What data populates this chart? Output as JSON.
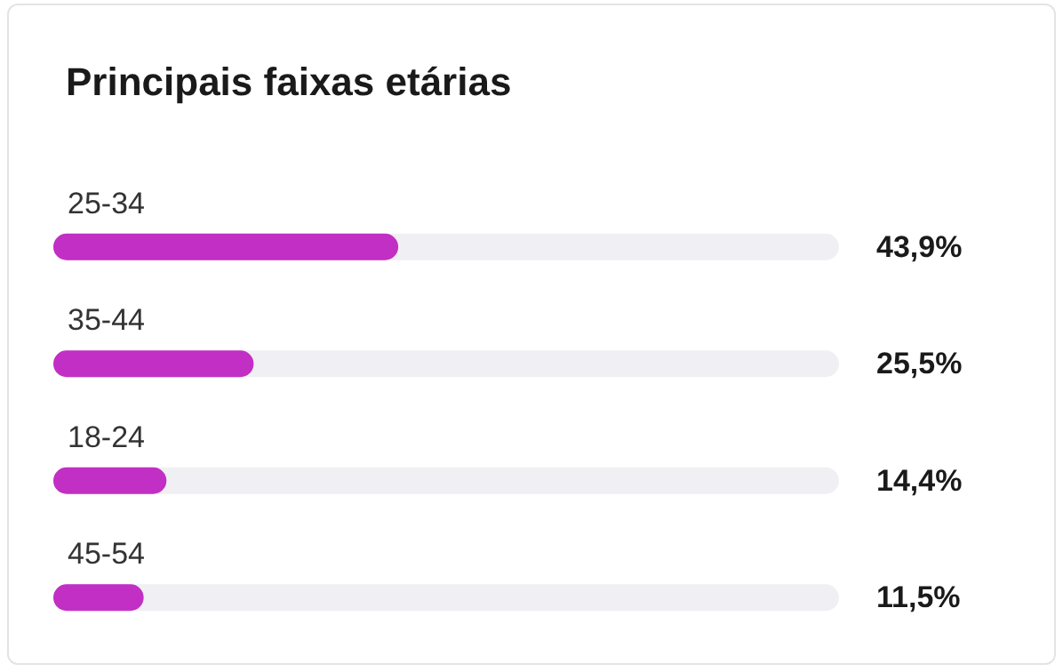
{
  "chart_data": {
    "type": "bar",
    "title": "Principais faixas etárias",
    "orientation": "horizontal",
    "categories": [
      "25-34",
      "35-44",
      "18-24",
      "45-54"
    ],
    "values": [
      43.9,
      25.5,
      14.4,
      11.5
    ],
    "value_labels": [
      "43,9%",
      "25,5%",
      "14,4%",
      "11,5%"
    ],
    "color": "#c22fc4",
    "xlim": [
      0,
      100
    ]
  }
}
